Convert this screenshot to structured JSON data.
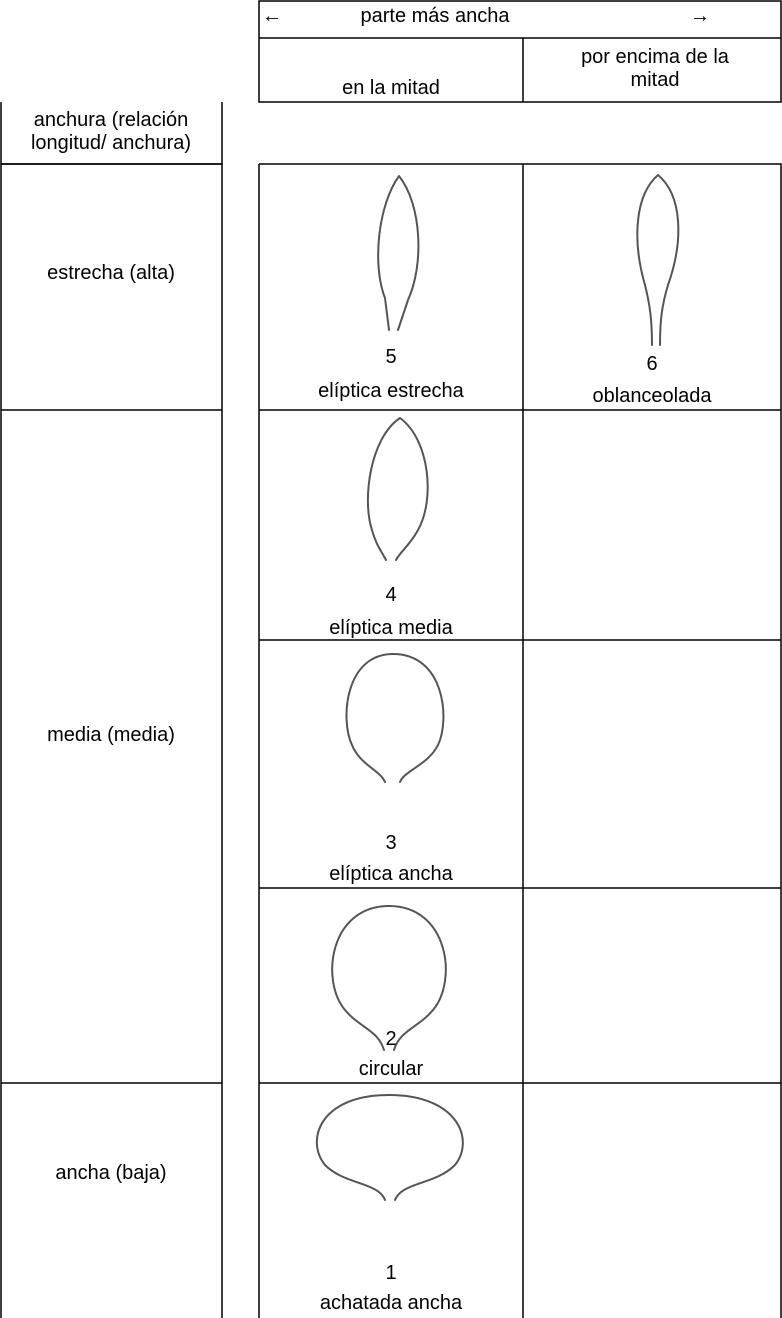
{
  "header": {
    "arrow_left": "←",
    "title": "parte más ancha",
    "arrow_right": "→",
    "columns": [
      "en la mitad",
      "por encima de la mitad"
    ]
  },
  "row_header": "anchura (relación longitud/ anchura)",
  "rows": [
    {
      "label": "estrecha (alta)"
    },
    {
      "label": "media (media)"
    },
    {
      "label": "ancha (baja)"
    }
  ],
  "cells": [
    {
      "number": 5,
      "name": "elíptica estrecha"
    },
    {
      "number": 6,
      "name": "oblanceolada"
    },
    {
      "number": 4,
      "name": "elíptica media"
    },
    {
      "number": 3,
      "name": "elíptica ancha"
    },
    {
      "number": 2,
      "name": "circular"
    },
    {
      "number": 1,
      "name": "achatada ancha"
    }
  ]
}
